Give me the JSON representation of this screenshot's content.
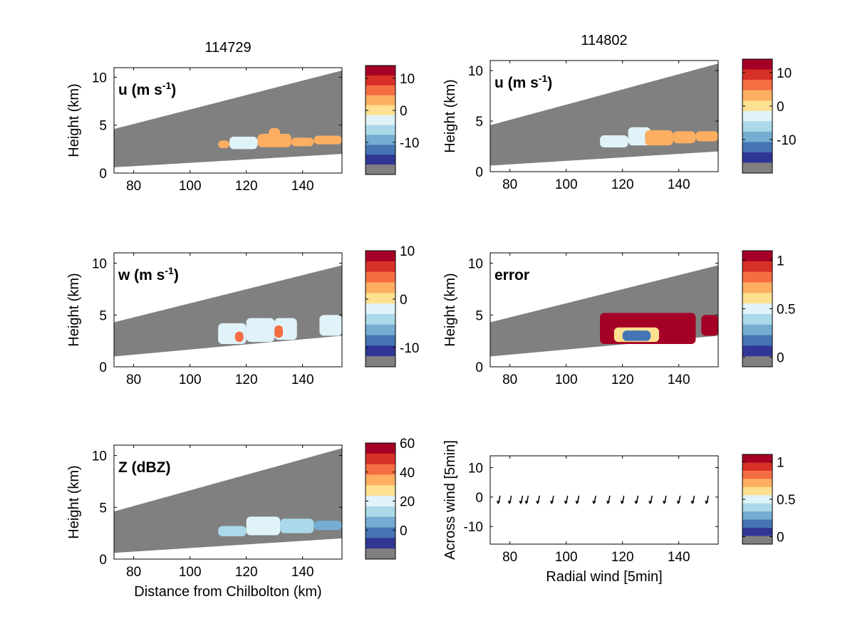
{
  "chart_data": [
    {
      "type": "heatmap",
      "title": "114729",
      "panel_label": "u (m s",
      "panel_label_sup": "-1",
      "panel_label_end": ")",
      "ylabel": "Height (km)",
      "xlabel": "",
      "xlim": [
        73,
        154
      ],
      "ylim": [
        0,
        11
      ],
      "xticks": [
        80,
        100,
        120,
        140
      ],
      "yticks": [
        0,
        5,
        10
      ],
      "colorbar": {
        "range": [
          -20,
          14
        ],
        "ticks": [
          10,
          0,
          -10
        ]
      },
      "scan": {
        "top_start": 4.6,
        "top_end": 10.7,
        "bottom_start": 0.6,
        "bottom_end": 2.0
      },
      "echo": [
        {
          "x": 110,
          "y": 2.6,
          "w": 4,
          "h": 0.8,
          "value": 3
        },
        {
          "x": 114,
          "y": 2.5,
          "w": 10,
          "h": 1.3,
          "value": -3
        },
        {
          "x": 124,
          "y": 2.7,
          "w": 12,
          "h": 1.4,
          "value": 3
        },
        {
          "x": 128,
          "y": 3.8,
          "w": 4,
          "h": 0.9,
          "value": 3
        },
        {
          "x": 136,
          "y": 2.8,
          "w": 8,
          "h": 0.9,
          "value": 3
        },
        {
          "x": 144,
          "y": 3.0,
          "w": 10,
          "h": 0.9,
          "value": 3
        }
      ]
    },
    {
      "type": "heatmap",
      "title": "114802",
      "panel_label": "u (m s",
      "panel_label_sup": "-1",
      "panel_label_end": ")",
      "ylabel": "Height (km)",
      "xlabel": "",
      "xlim": [
        73,
        154
      ],
      "ylim": [
        0,
        11
      ],
      "xticks": [
        80,
        100,
        120,
        140
      ],
      "yticks": [
        0,
        5,
        10
      ],
      "colorbar": {
        "range": [
          -20,
          14
        ],
        "ticks": [
          10,
          0,
          -10
        ]
      },
      "scan": {
        "top_start": 4.6,
        "top_end": 10.7,
        "bottom_start": 0.6,
        "bottom_end": 2.0
      },
      "echo": [
        {
          "x": 112,
          "y": 2.4,
          "w": 10,
          "h": 1.2,
          "value": -3
        },
        {
          "x": 122,
          "y": 2.6,
          "w": 8,
          "h": 1.8,
          "value": -3
        },
        {
          "x": 128,
          "y": 2.6,
          "w": 10,
          "h": 1.5,
          "value": 3
        },
        {
          "x": 138,
          "y": 2.8,
          "w": 8,
          "h": 1.2,
          "value": 3
        },
        {
          "x": 146,
          "y": 3.0,
          "w": 8,
          "h": 1.0,
          "value": 3
        }
      ]
    },
    {
      "type": "heatmap",
      "title": "",
      "panel_label": "w (m s",
      "panel_label_sup": "-1",
      "panel_label_end": ")",
      "ylabel": "Height (km)",
      "xlabel": "",
      "xlim": [
        73,
        154
      ],
      "ylim": [
        0,
        11
      ],
      "xticks": [
        80,
        100,
        120,
        140
      ],
      "yticks": [
        0,
        5,
        10
      ],
      "colorbar": {
        "range": [
          -14,
          10
        ],
        "ticks": [
          10,
          0,
          -10
        ]
      },
      "scan": {
        "top_start": 4.3,
        "top_end": 9.8,
        "bottom_start": 1.0,
        "bottom_end": 3.0
      },
      "echo": [
        {
          "x": 110,
          "y": 2.2,
          "w": 10,
          "h": 2.0,
          "value": -3
        },
        {
          "x": 120,
          "y": 2.4,
          "w": 10,
          "h": 2.3,
          "value": -3
        },
        {
          "x": 130,
          "y": 2.6,
          "w": 8,
          "h": 2.1,
          "value": -3
        },
        {
          "x": 116,
          "y": 2.4,
          "w": 3,
          "h": 1.0,
          "value": 5
        },
        {
          "x": 130,
          "y": 2.8,
          "w": 3,
          "h": 1.2,
          "value": 5
        },
        {
          "x": 146,
          "y": 3.0,
          "w": 8,
          "h": 2.0,
          "value": -3
        }
      ]
    },
    {
      "type": "heatmap",
      "title": "",
      "panel_label": "error",
      "panel_label_sup": "",
      "panel_label_end": "",
      "ylabel": "Height (km)",
      "xlabel": "",
      "xlim": [
        73,
        154
      ],
      "ylim": [
        0,
        11
      ],
      "xticks": [
        80,
        100,
        120,
        140
      ],
      "yticks": [
        0,
        5,
        10
      ],
      "colorbar": {
        "range": [
          -0.1,
          1.1
        ],
        "ticks": [
          1,
          0.5,
          0
        ]
      },
      "scan": {
        "top_start": 4.3,
        "top_end": 9.8,
        "bottom_start": 1.0,
        "bottom_end": 3.0
      },
      "echo": [
        {
          "x": 112,
          "y": 2.2,
          "w": 34,
          "h": 3.0,
          "value": 1.05
        },
        {
          "x": 117,
          "y": 2.4,
          "w": 16,
          "h": 1.4,
          "value": 0.6
        },
        {
          "x": 120,
          "y": 2.5,
          "w": 10,
          "h": 1.0,
          "value": 0.15
        },
        {
          "x": 148,
          "y": 3.0,
          "w": 6,
          "h": 2.0,
          "value": 1.05
        }
      ]
    },
    {
      "type": "heatmap",
      "title": "",
      "panel_label": "Z (dBZ)",
      "panel_label_sup": "",
      "panel_label_end": "",
      "ylabel": "Height (km)",
      "xlabel": "Distance from Chilbolton (km)",
      "xlim": [
        73,
        154
      ],
      "ylim": [
        0,
        11
      ],
      "xticks": [
        80,
        100,
        120,
        140
      ],
      "yticks": [
        0,
        5,
        10
      ],
      "colorbar": {
        "range": [
          -20,
          60
        ],
        "ticks": [
          60,
          40,
          20,
          0
        ]
      },
      "scan": {
        "top_start": 4.6,
        "top_end": 10.7,
        "bottom_start": 0.6,
        "bottom_end": 2.0
      },
      "echo": [
        {
          "x": 110,
          "y": 2.2,
          "w": 10,
          "h": 1.0,
          "value": 13
        },
        {
          "x": 120,
          "y": 2.3,
          "w": 12,
          "h": 1.8,
          "value": 18
        },
        {
          "x": 124,
          "y": 2.6,
          "w": 6,
          "h": 1.0,
          "value": 22
        },
        {
          "x": 132,
          "y": 2.5,
          "w": 12,
          "h": 1.4,
          "value": 10
        },
        {
          "x": 144,
          "y": 2.8,
          "w": 10,
          "h": 0.9,
          "value": 8
        }
      ]
    },
    {
      "type": "scatter",
      "title": "",
      "ylabel": "Across wind [5min]",
      "xlabel": "Radial wind [5min]",
      "xlim": [
        73,
        154
      ],
      "ylim": [
        -16,
        14
      ],
      "xticks": [
        80,
        100,
        120,
        140
      ],
      "yticks": [
        10,
        0,
        -10
      ],
      "colorbar": {
        "range": [
          -0.1,
          1.1
        ],
        "ticks": [
          1,
          0.5,
          0
        ]
      },
      "arrows_x": [
        76,
        80,
        84,
        86,
        90,
        95,
        100,
        104,
        110,
        115,
        120,
        125,
        130,
        135,
        140,
        145,
        150
      ],
      "arrows_y": [
        -1.5,
        -1.5,
        -1.5,
        -1.5,
        -1.5,
        -1.5,
        -1.5,
        -1.5,
        -1.5,
        -1.5,
        -1.5,
        -1.5,
        -1.5,
        -1.5,
        -1.5,
        -1.5,
        -1.5
      ]
    }
  ],
  "colors": {
    "gray": "#808080",
    "palette_red_blue": [
      "#a50026",
      "#d73027",
      "#f46d43",
      "#fdae61",
      "#fee090",
      "#e0f3f8",
      "#abd9e9",
      "#74add1",
      "#4575b4",
      "#313695"
    ]
  }
}
